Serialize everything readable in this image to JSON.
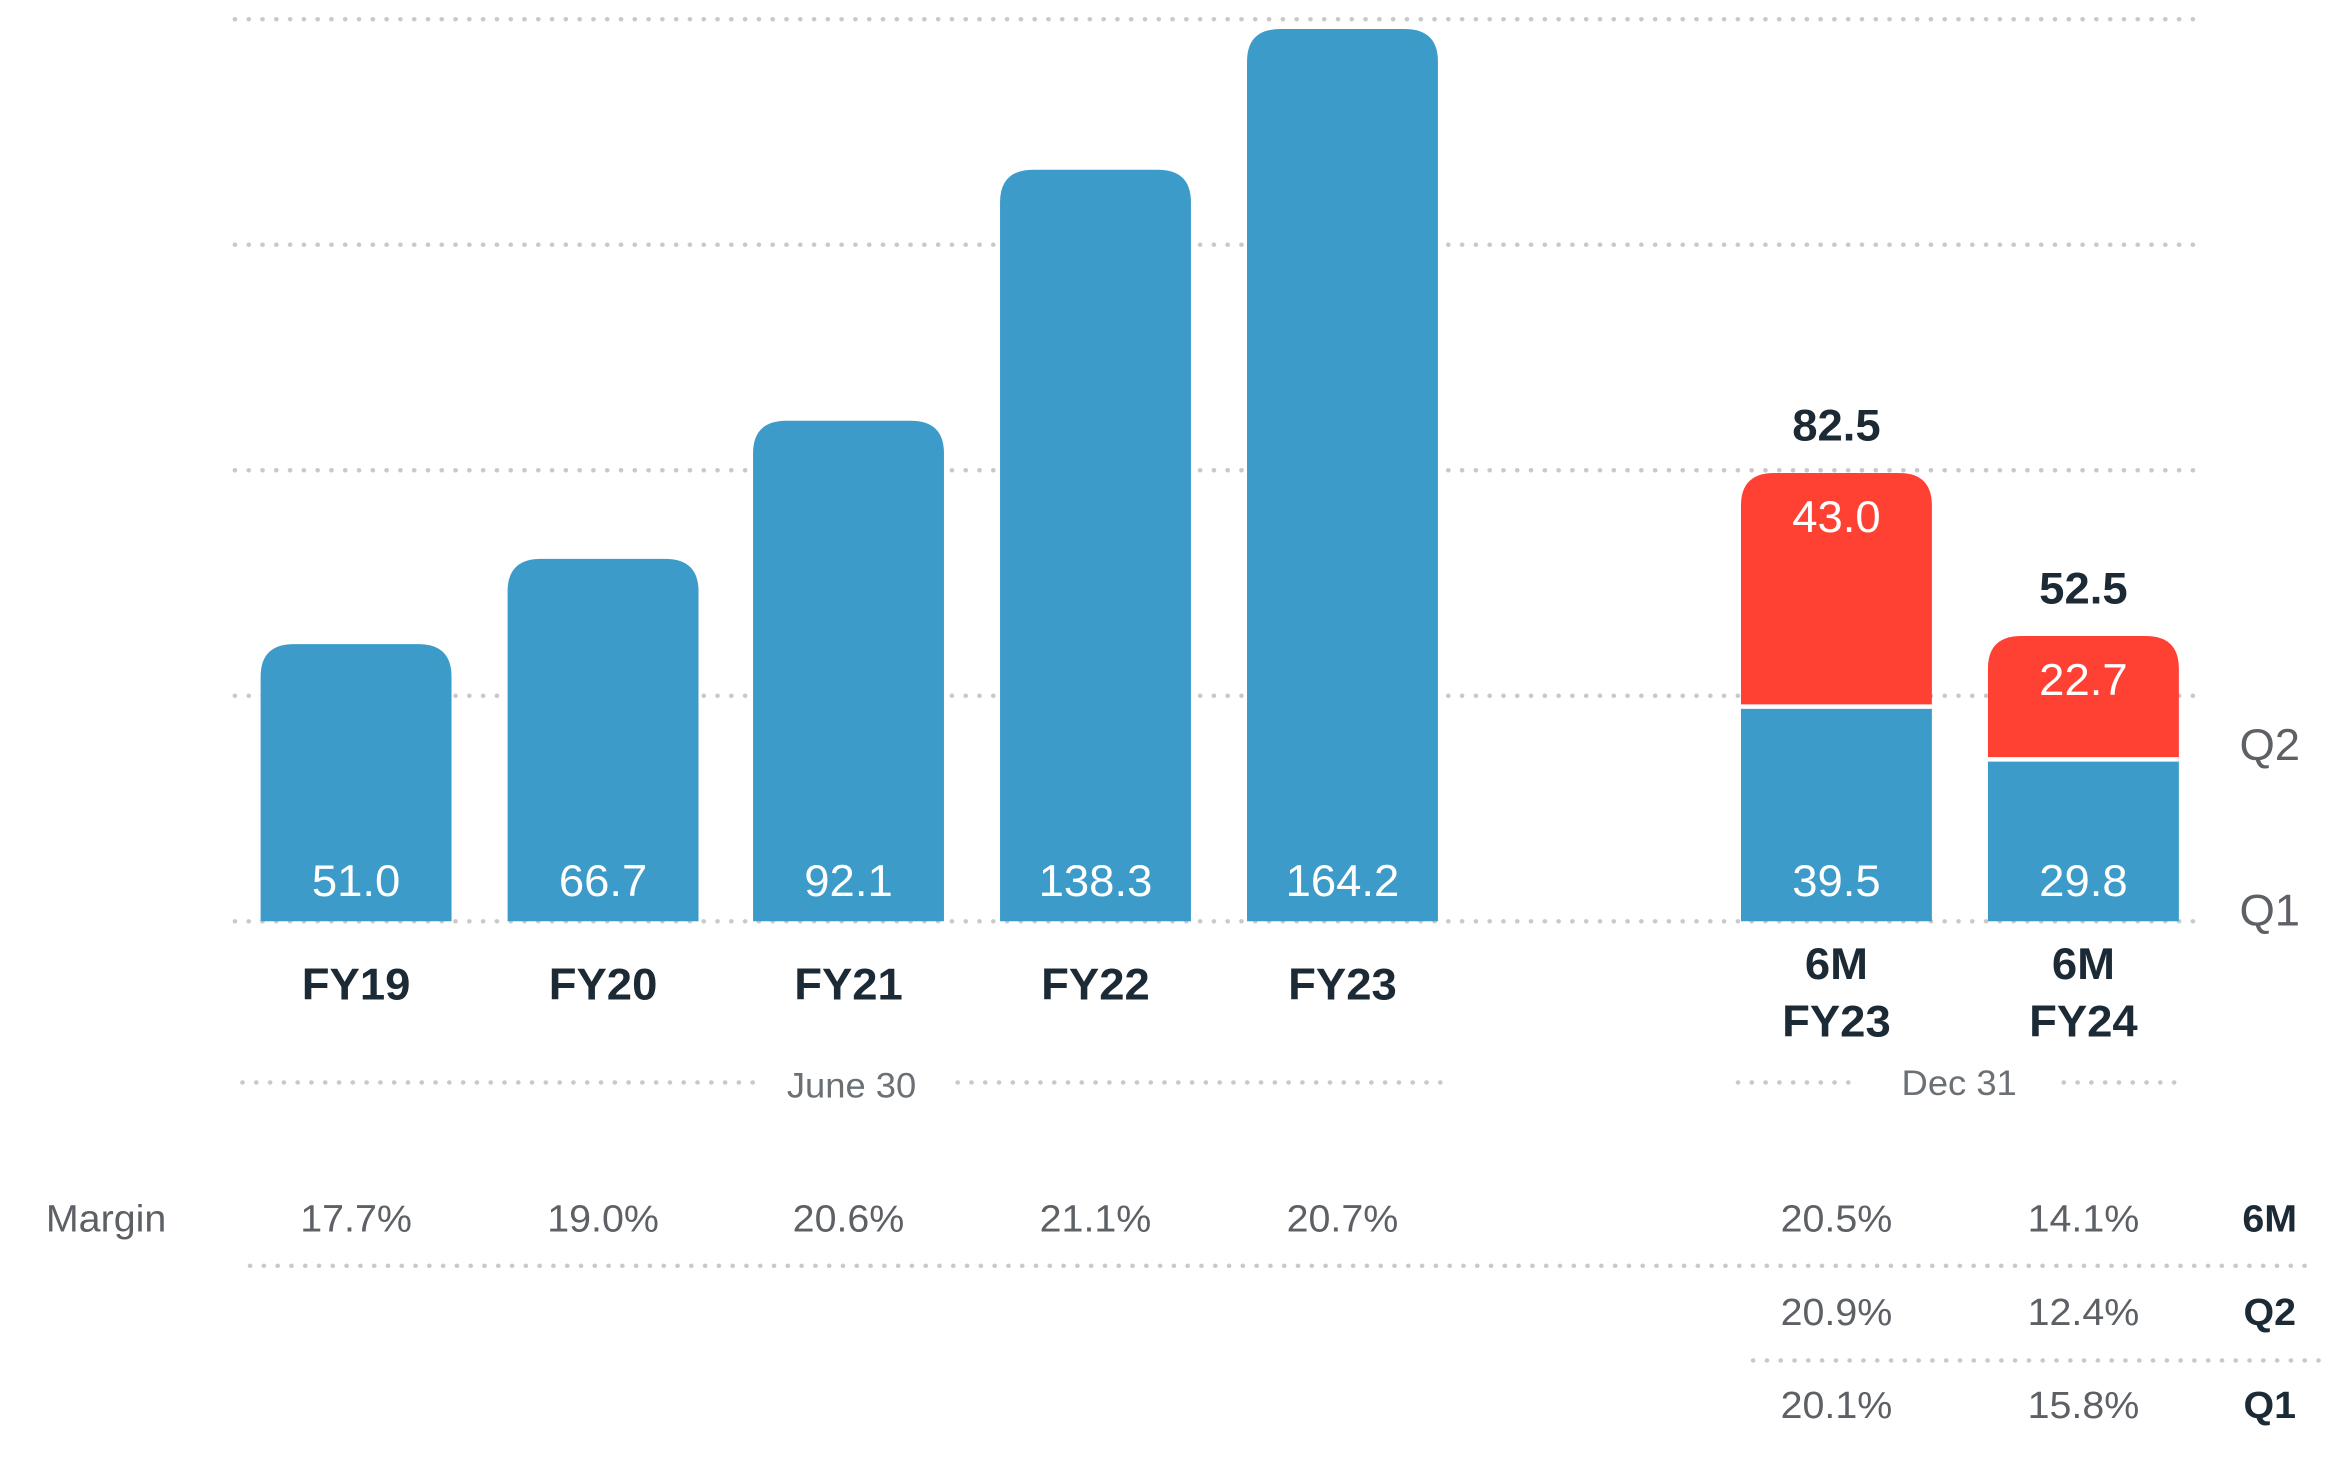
{
  "chart_data": [
    {
      "type": "bar",
      "categories": [
        "FY19",
        "FY20",
        "FY21",
        "FY22",
        "FY23"
      ],
      "values": [
        51.0,
        66.7,
        92.1,
        138.3,
        164.2
      ],
      "value_labels": [
        "51.0",
        "66.7",
        "92.1",
        "138.3",
        "164.2"
      ],
      "color": "#3d9bc9",
      "group_label": "June 30",
      "ylim": [
        0,
        166
      ],
      "yticks": [
        0,
        41.5,
        83,
        124.5,
        166
      ],
      "grid": true
    },
    {
      "type": "stacked_bar",
      "categories": [
        [
          "6M",
          "FY23"
        ],
        [
          "6M",
          "FY24"
        ]
      ],
      "series": [
        {
          "name": "Q1",
          "color": "#3d9bc9",
          "values": [
            39.5,
            29.8
          ],
          "value_labels": [
            "39.5",
            "29.8"
          ]
        },
        {
          "name": "Q2",
          "color": "#ff4133",
          "values": [
            43.0,
            22.7
          ],
          "value_labels": [
            "43.0",
            "22.7"
          ]
        }
      ],
      "total_labels": [
        "82.5",
        "52.5"
      ],
      "group_label": "Dec 31",
      "ylim": [
        0,
        166
      ]
    }
  ],
  "margins": {
    "title": "Margin",
    "annual": [
      "17.7%",
      "19.0%",
      "20.6%",
      "21.1%",
      "20.7%"
    ],
    "half_rows": [
      {
        "name": "6M",
        "values": [
          "20.5%",
          "14.1%"
        ]
      },
      {
        "name": "Q2",
        "values": [
          "20.9%",
          "12.4%"
        ]
      },
      {
        "name": "Q1",
        "values": [
          "20.1%",
          "15.8%"
        ]
      }
    ]
  }
}
